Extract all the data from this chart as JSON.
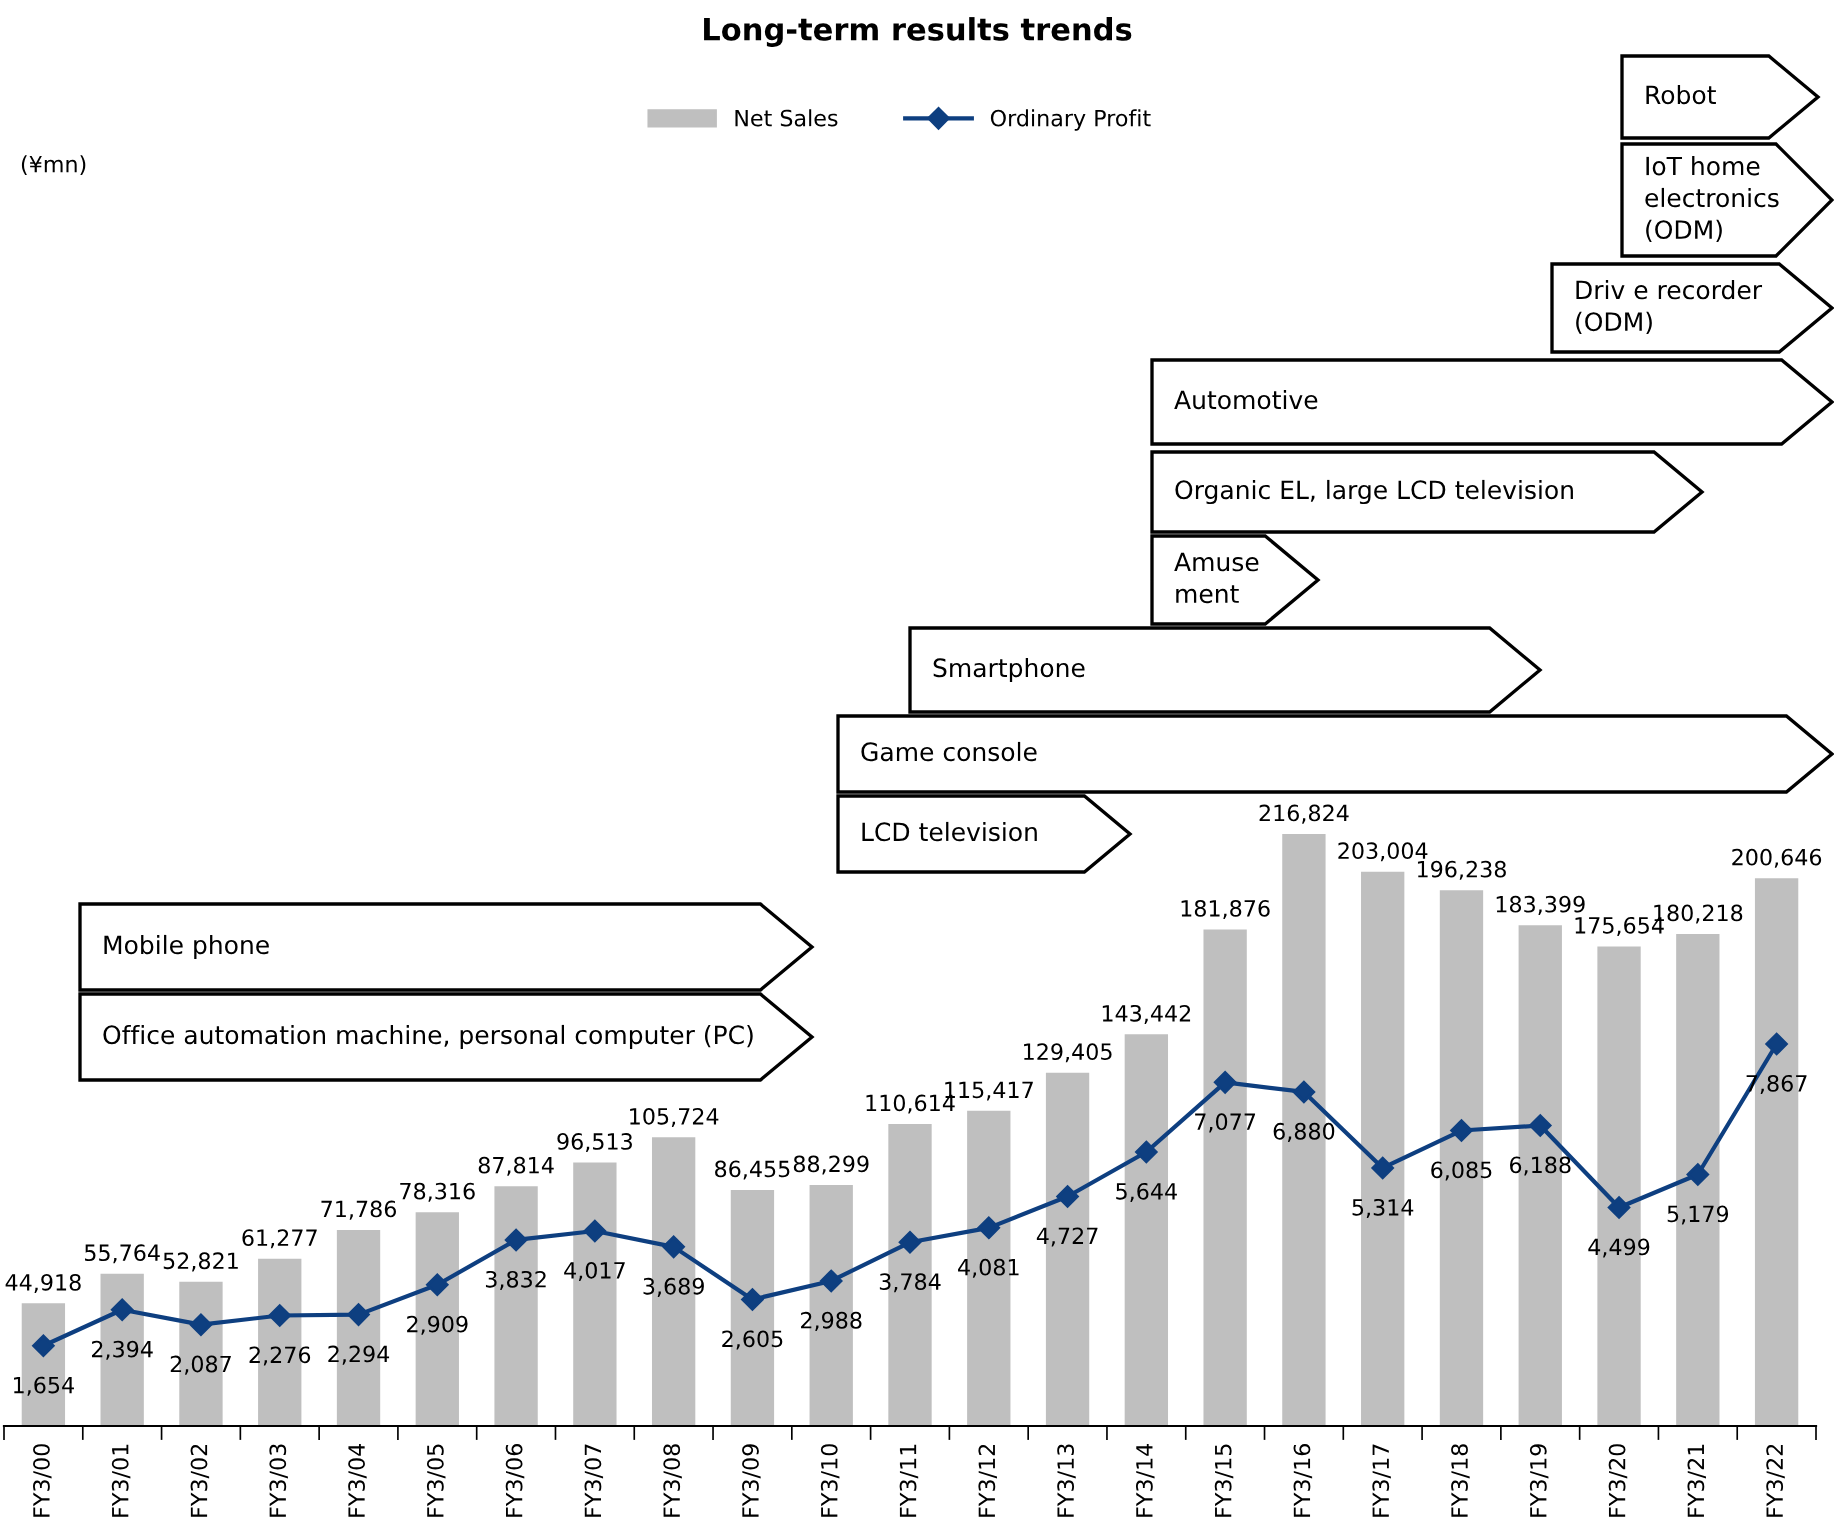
{
  "chart_data": {
    "type": "bar",
    "title": "Long-term results trends",
    "categories": [
      "FY3/00",
      "FY3/01",
      "FY3/02",
      "FY3/03",
      "FY3/04",
      "FY3/05",
      "FY3/06",
      "FY3/07",
      "FY3/08",
      "FY3/09",
      "FY3/10",
      "FY3/11",
      "FY3/12",
      "FY3/13",
      "FY3/14",
      "FY3/15",
      "FY3/16",
      "FY3/17",
      "FY3/18",
      "FY3/19",
      "FY3/20",
      "FY3/21",
      "FY3/22"
    ],
    "series": [
      {
        "name": "Net Sales",
        "color": "#bfbfbf",
        "values": [
          44918,
          55764,
          52821,
          61277,
          71786,
          78316,
          87814,
          96513,
          105724,
          86455,
          88299,
          110614,
          115417,
          129405,
          143442,
          181876,
          216824,
          203004,
          196238,
          183399,
          175654,
          180218,
          200646
        ],
        "value_labels": [
          "44,918",
          "55,764",
          "52,821",
          "61,277",
          "71,786",
          "78,316",
          "87,814",
          "96,513",
          "105,724",
          "86,455",
          "88,299",
          "110,614",
          "115,417",
          "129,405",
          "143,442",
          "181,876",
          "216,824",
          "203,004",
          "196,238",
          "183,399",
          "175,654",
          "180,218",
          "200,646"
        ]
      },
      {
        "name": "Ordinary Profit",
        "type": "line",
        "axis": "y2",
        "color": "#0e3f80",
        "marker": "diamond",
        "values": [
          1654,
          2394,
          2087,
          2276,
          2294,
          2909,
          3832,
          4017,
          3689,
          2605,
          2988,
          3784,
          4081,
          4727,
          5644,
          7077,
          6880,
          5314,
          6085,
          6188,
          4499,
          5179,
          7867
        ],
        "value_labels": [
          "1,654",
          "2,394",
          "2,087",
          "2,276",
          "2,294",
          "2,909",
          "3,832",
          "4,017",
          "3,689",
          "2,605",
          "2,988",
          "3,784",
          "4,081",
          "4,727",
          "5,644",
          "7,077",
          "6,880",
          "5,314",
          "6,085",
          "6,188",
          "4,499",
          "5,179",
          "7,867"
        ]
      }
    ],
    "tick_labels": "x",
    "legend": "top",
    "grid": false,
    "annotations": [
      "(¥mn)",
      "Robot",
      "IoT home\nelectronics\n(ODM)",
      "Driv e recorder\n(ODM)",
      "Automotive",
      "Organic EL, large LCD television",
      "Amuse\nment",
      "Smartphone",
      "Game console",
      "LCD television",
      "Mobile phone",
      "Office automation machine, personal computer (PC)"
    ]
  }
}
